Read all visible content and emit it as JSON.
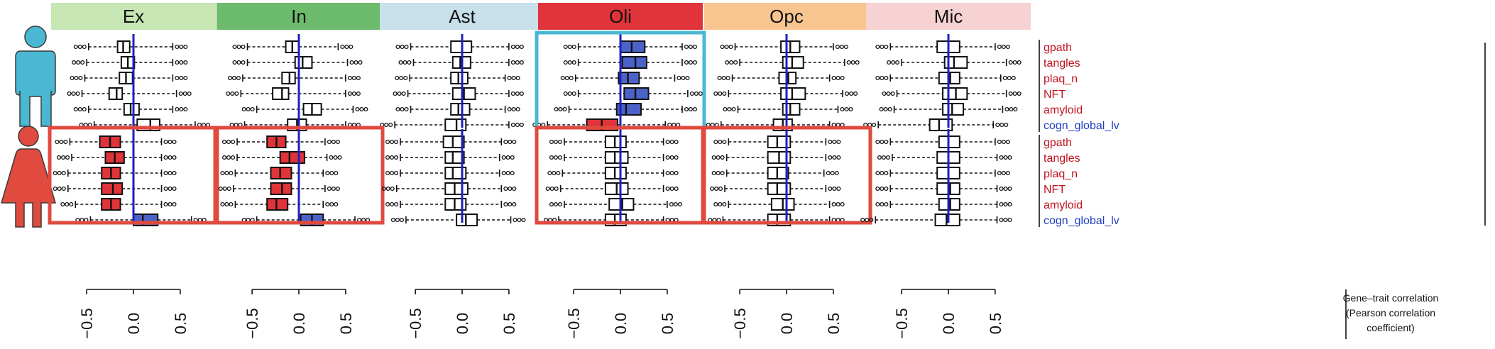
{
  "chart_data": {
    "type": "boxplot",
    "cell_types": [
      {
        "name": "Ex",
        "color": "#c6e6b3"
      },
      {
        "name": "In",
        "color": "#6dbc6d"
      },
      {
        "name": "Ast",
        "color": "#c7e0ea"
      },
      {
        "name": "Oli",
        "color": "#e0343a"
      },
      {
        "name": "Opc",
        "color": "#f8c490"
      },
      {
        "name": "Mic",
        "color": "#f6d2d2"
      }
    ],
    "sexes": [
      "male",
      "female"
    ],
    "traits": [
      {
        "name": "gpath",
        "color": "#c1121f"
      },
      {
        "name": "tangles",
        "color": "#c1121f"
      },
      {
        "name": "plaq_n",
        "color": "#c1121f"
      },
      {
        "name": "NFT",
        "color": "#c1121f"
      },
      {
        "name": "amyloid",
        "color": "#c1121f"
      },
      {
        "name": "cogn_global_lv",
        "color": "#1f3fbf"
      }
    ],
    "x_ticks": [
      "−0.5",
      "0.0",
      "0.5"
    ],
    "x_tick_values": [
      -0.5,
      0.0,
      0.5
    ],
    "xlim": [
      -0.85,
      0.85
    ],
    "axis_title_lines": [
      "Gene–trait correlation",
      "(Pearson correlation",
      "coefficient)"
    ],
    "highlight_colors": {
      "male": "#4ab8d2",
      "female": "#e04a3f"
    },
    "fill_colors": {
      "positive": "#4b63c9",
      "negative": "#e0343a",
      "none": "#ffffff"
    },
    "zero_line_color": "#1f1fbf",
    "highlighted_panels": [
      {
        "sex": "male",
        "cell_type": "Oli"
      },
      {
        "sex": "female",
        "cell_type": "Ex"
      },
      {
        "sex": "female",
        "cell_type": "In"
      },
      {
        "sex": "female",
        "cell_type": "Oli"
      },
      {
        "sex": "female",
        "cell_type": "Opc"
      }
    ],
    "panels": {
      "male": {
        "Ex": [
          {
            "q1": -0.17,
            "med": -0.11,
            "q3": -0.04,
            "wlo": -0.48,
            "whi": 0.42,
            "fill": "none"
          },
          {
            "q1": -0.13,
            "med": -0.06,
            "q3": 0.01,
            "wlo": -0.5,
            "whi": 0.42,
            "fill": "none"
          },
          {
            "q1": -0.15,
            "med": -0.08,
            "q3": -0.01,
            "wlo": -0.52,
            "whi": 0.42,
            "fill": "none"
          },
          {
            "q1": -0.26,
            "med": -0.18,
            "q3": -0.12,
            "wlo": -0.55,
            "whi": 0.46,
            "fill": "none"
          },
          {
            "q1": -0.1,
            "med": -0.03,
            "q3": 0.06,
            "wlo": -0.48,
            "whi": 0.42,
            "fill": "none"
          },
          {
            "q1": 0.04,
            "med": 0.18,
            "q3": 0.28,
            "wlo": -0.42,
            "whi": 0.66,
            "fill": "none"
          }
        ],
        "In": [
          {
            "q1": -0.14,
            "med": -0.07,
            "q3": 0.0,
            "wlo": -0.55,
            "whi": 0.42,
            "fill": "none"
          },
          {
            "q1": -0.04,
            "med": 0.04,
            "q3": 0.14,
            "wlo": -0.55,
            "whi": 0.52,
            "fill": "none"
          },
          {
            "q1": -0.18,
            "med": -0.1,
            "q3": -0.04,
            "wlo": -0.6,
            "whi": 0.5,
            "fill": "none"
          },
          {
            "q1": -0.28,
            "med": -0.18,
            "q3": -0.11,
            "wlo": -0.62,
            "whi": 0.5,
            "fill": "none"
          },
          {
            "q1": 0.05,
            "med": 0.14,
            "q3": 0.24,
            "wlo": -0.45,
            "whi": 0.58,
            "fill": "none"
          },
          {
            "q1": -0.12,
            "med": -0.02,
            "q3": 0.08,
            "wlo": -0.58,
            "whi": 0.5,
            "fill": "none"
          }
        ],
        "Ast": [
          {
            "q1": -0.12,
            "med": 0.0,
            "q3": 0.1,
            "wlo": -0.55,
            "whi": 0.5,
            "fill": "none"
          },
          {
            "q1": -0.1,
            "med": -0.02,
            "q3": 0.09,
            "wlo": -0.52,
            "whi": 0.5,
            "fill": "none"
          },
          {
            "q1": -0.12,
            "med": -0.04,
            "q3": 0.06,
            "wlo": -0.56,
            "whi": 0.46,
            "fill": "none"
          },
          {
            "q1": -0.1,
            "med": 0.02,
            "q3": 0.14,
            "wlo": -0.58,
            "whi": 0.5,
            "fill": "none"
          },
          {
            "q1": -0.12,
            "med": -0.04,
            "q3": 0.08,
            "wlo": -0.55,
            "whi": 0.46,
            "fill": "none"
          },
          {
            "q1": -0.18,
            "med": -0.06,
            "q3": 0.04,
            "wlo": -0.72,
            "whi": 0.5,
            "fill": "none"
          }
        ],
        "Oli": [
          {
            "q1": 0.0,
            "med": 0.12,
            "q3": 0.26,
            "wlo": -0.45,
            "whi": 0.66,
            "fill": "positive"
          },
          {
            "q1": 0.02,
            "med": 0.16,
            "q3": 0.28,
            "wlo": -0.45,
            "whi": 0.66,
            "fill": "positive"
          },
          {
            "q1": -0.02,
            "med": 0.08,
            "q3": 0.2,
            "wlo": -0.48,
            "whi": 0.58,
            "fill": "positive"
          },
          {
            "q1": 0.04,
            "med": 0.16,
            "q3": 0.3,
            "wlo": -0.45,
            "whi": 0.72,
            "fill": "positive"
          },
          {
            "q1": -0.04,
            "med": 0.06,
            "q3": 0.22,
            "wlo": -0.55,
            "whi": 0.66,
            "fill": "positive"
          },
          {
            "q1": -0.36,
            "med": -0.2,
            "q3": -0.03,
            "wlo": -0.78,
            "whi": 0.48,
            "fill": "negative"
          }
        ],
        "Opc": [
          {
            "q1": -0.06,
            "med": 0.04,
            "q3": 0.14,
            "wlo": -0.55,
            "whi": 0.5,
            "fill": "none"
          },
          {
            "q1": -0.04,
            "med": 0.06,
            "q3": 0.18,
            "wlo": -0.5,
            "whi": 0.62,
            "fill": "none"
          },
          {
            "q1": -0.08,
            "med": 0.02,
            "q3": 0.1,
            "wlo": -0.58,
            "whi": 0.46,
            "fill": "none"
          },
          {
            "q1": -0.06,
            "med": 0.06,
            "q3": 0.2,
            "wlo": -0.62,
            "whi": 0.6,
            "fill": "none"
          },
          {
            "q1": -0.04,
            "med": 0.04,
            "q3": 0.14,
            "wlo": -0.52,
            "whi": 0.55,
            "fill": "none"
          },
          {
            "q1": -0.14,
            "med": -0.04,
            "q3": 0.06,
            "wlo": -0.7,
            "whi": 0.46,
            "fill": "none"
          }
        ],
        "Mic": [
          {
            "q1": -0.12,
            "med": 0.0,
            "q3": 0.12,
            "wlo": -0.62,
            "whi": 0.5,
            "fill": "none"
          },
          {
            "q1": -0.04,
            "med": 0.06,
            "q3": 0.2,
            "wlo": -0.5,
            "whi": 0.62,
            "fill": "none"
          },
          {
            "q1": -0.1,
            "med": 0.02,
            "q3": 0.12,
            "wlo": -0.62,
            "whi": 0.56,
            "fill": "none"
          },
          {
            "q1": -0.06,
            "med": 0.08,
            "q3": 0.2,
            "wlo": -0.55,
            "whi": 0.62,
            "fill": "none"
          },
          {
            "q1": -0.06,
            "med": 0.04,
            "q3": 0.16,
            "wlo": -0.58,
            "whi": 0.58,
            "fill": "none"
          },
          {
            "q1": -0.2,
            "med": -0.1,
            "q3": 0.04,
            "wlo": -0.75,
            "whi": 0.48,
            "fill": "none"
          }
        ]
      },
      "female": {
        "Ex": [
          {
            "q1": -0.36,
            "med": -0.25,
            "q3": -0.14,
            "wlo": -0.68,
            "whi": 0.3,
            "fill": "negative"
          },
          {
            "q1": -0.3,
            "med": -0.2,
            "q3": -0.1,
            "wlo": -0.66,
            "whi": 0.3,
            "fill": "negative"
          },
          {
            "q1": -0.34,
            "med": -0.24,
            "q3": -0.14,
            "wlo": -0.7,
            "whi": 0.3,
            "fill": "negative"
          },
          {
            "q1": -0.34,
            "med": -0.22,
            "q3": -0.12,
            "wlo": -0.7,
            "whi": 0.3,
            "fill": "negative"
          },
          {
            "q1": -0.34,
            "med": -0.24,
            "q3": -0.14,
            "wlo": -0.62,
            "whi": 0.3,
            "fill": "negative"
          },
          {
            "q1": 0.0,
            "med": 0.1,
            "q3": 0.26,
            "wlo": -0.46,
            "whi": 0.62,
            "fill": "positive"
          }
        ],
        "In": [
          {
            "q1": -0.34,
            "med": -0.24,
            "q3": -0.14,
            "wlo": -0.66,
            "whi": 0.28,
            "fill": "negative"
          },
          {
            "q1": -0.2,
            "med": -0.1,
            "q3": 0.06,
            "wlo": -0.66,
            "whi": 0.3,
            "fill": "negative"
          },
          {
            "q1": -0.3,
            "med": -0.2,
            "q3": -0.08,
            "wlo": -0.68,
            "whi": 0.26,
            "fill": "negative"
          },
          {
            "q1": -0.3,
            "med": -0.18,
            "q3": -0.08,
            "wlo": -0.7,
            "whi": 0.28,
            "fill": "negative"
          },
          {
            "q1": -0.34,
            "med": -0.24,
            "q3": -0.12,
            "wlo": -0.68,
            "whi": 0.26,
            "fill": "negative"
          },
          {
            "q1": 0.02,
            "med": 0.14,
            "q3": 0.26,
            "wlo": -0.45,
            "whi": 0.6,
            "fill": "positive"
          }
        ],
        "Ast": [
          {
            "q1": -0.2,
            "med": -0.1,
            "q3": 0.02,
            "wlo": -0.66,
            "whi": 0.42,
            "fill": "none"
          },
          {
            "q1": -0.18,
            "med": -0.1,
            "q3": 0.02,
            "wlo": -0.66,
            "whi": 0.4,
            "fill": "none"
          },
          {
            "q1": -0.18,
            "med": -0.1,
            "q3": 0.04,
            "wlo": -0.66,
            "whi": 0.4,
            "fill": "none"
          },
          {
            "q1": -0.18,
            "med": -0.08,
            "q3": 0.06,
            "wlo": -0.7,
            "whi": 0.42,
            "fill": "none"
          },
          {
            "q1": -0.18,
            "med": -0.08,
            "q3": 0.04,
            "wlo": -0.66,
            "whi": 0.42,
            "fill": "none"
          },
          {
            "q1": -0.06,
            "med": 0.04,
            "q3": 0.16,
            "wlo": -0.6,
            "whi": 0.52,
            "fill": "none"
          }
        ],
        "Oli": [
          {
            "q1": -0.16,
            "med": -0.06,
            "q3": 0.06,
            "wlo": -0.6,
            "whi": 0.46,
            "fill": "none"
          },
          {
            "q1": -0.16,
            "med": -0.06,
            "q3": 0.08,
            "wlo": -0.6,
            "whi": 0.46,
            "fill": "none"
          },
          {
            "q1": -0.16,
            "med": -0.06,
            "q3": 0.06,
            "wlo": -0.62,
            "whi": 0.46,
            "fill": "none"
          },
          {
            "q1": -0.16,
            "med": -0.04,
            "q3": 0.08,
            "wlo": -0.64,
            "whi": 0.46,
            "fill": "none"
          },
          {
            "q1": -0.12,
            "med": 0.02,
            "q3": 0.14,
            "wlo": -0.6,
            "whi": 0.5,
            "fill": "none"
          },
          {
            "q1": -0.16,
            "med": -0.06,
            "q3": 0.06,
            "wlo": -0.66,
            "whi": 0.46,
            "fill": "none"
          }
        ],
        "Opc": [
          {
            "q1": -0.2,
            "med": -0.1,
            "q3": 0.04,
            "wlo": -0.62,
            "whi": 0.42,
            "fill": "none"
          },
          {
            "q1": -0.2,
            "med": -0.08,
            "q3": 0.04,
            "wlo": -0.64,
            "whi": 0.42,
            "fill": "none"
          },
          {
            "q1": -0.2,
            "med": -0.1,
            "q3": 0.02,
            "wlo": -0.64,
            "whi": 0.4,
            "fill": "none"
          },
          {
            "q1": -0.2,
            "med": -0.1,
            "q3": 0.04,
            "wlo": -0.66,
            "whi": 0.42,
            "fill": "none"
          },
          {
            "q1": -0.16,
            "med": -0.04,
            "q3": 0.08,
            "wlo": -0.62,
            "whi": 0.46,
            "fill": "none"
          },
          {
            "q1": -0.2,
            "med": -0.1,
            "q3": 0.04,
            "wlo": -0.68,
            "whi": 0.46,
            "fill": "none"
          }
        ],
        "Mic": [
          {
            "q1": -0.1,
            "med": 0.0,
            "q3": 0.12,
            "wlo": -0.62,
            "whi": 0.5,
            "fill": "none"
          },
          {
            "q1": -0.12,
            "med": 0.0,
            "q3": 0.12,
            "wlo": -0.6,
            "whi": 0.52,
            "fill": "none"
          },
          {
            "q1": -0.12,
            "med": 0.0,
            "q3": 0.12,
            "wlo": -0.62,
            "whi": 0.5,
            "fill": "none"
          },
          {
            "q1": -0.12,
            "med": 0.02,
            "q3": 0.12,
            "wlo": -0.62,
            "whi": 0.52,
            "fill": "none"
          },
          {
            "q1": -0.1,
            "med": 0.02,
            "q3": 0.12,
            "wlo": -0.62,
            "whi": 0.52,
            "fill": "none"
          },
          {
            "q1": -0.14,
            "med": -0.02,
            "q3": 0.12,
            "wlo": -0.78,
            "whi": 0.52,
            "fill": "none"
          }
        ]
      }
    }
  }
}
